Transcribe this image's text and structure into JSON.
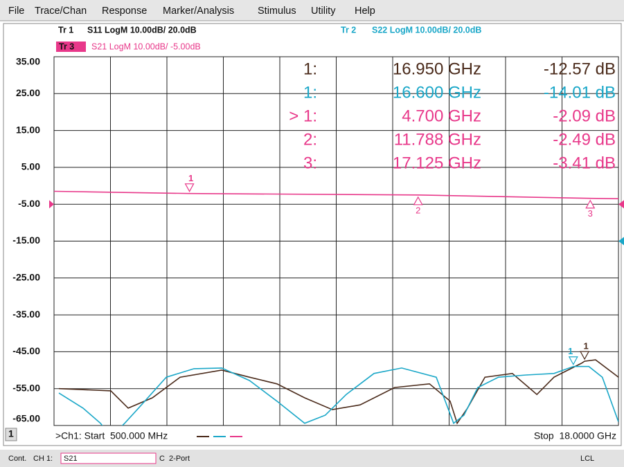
{
  "menu": [
    "File",
    "Trace/Chan",
    "Response",
    "Marker/Analysis",
    "Stimulus",
    "Utility",
    "Help"
  ],
  "traces": [
    {
      "tag": "Tr 1",
      "label": "S11 LogM 10.00dB/ 20.0dB"
    },
    {
      "tag": "Tr 2",
      "label": "S22 LogM 10.00dB/ 20.0dB"
    },
    {
      "tag": "Tr 3",
      "label": "S21 LogM 10.00dB/ -5.00dB"
    }
  ],
  "chart_data": {
    "type": "line",
    "xlim": [
      0.5,
      18
    ],
    "xticks": [
      0.5,
      2.25,
      4,
      5.75,
      7.5,
      9.25,
      11,
      12.75,
      14.5,
      16.25,
      18
    ],
    "ylim": [
      -65,
      35
    ],
    "yticks": [
      {
        "value": 35,
        "label": "35.00"
      },
      {
        "value": 25,
        "label": "25.00"
      },
      {
        "value": 15,
        "label": "15.00"
      },
      {
        "value": 5,
        "label": "5.00"
      },
      {
        "value": -5,
        "label": "-5.00"
      },
      {
        "value": -15,
        "label": "-15.00"
      },
      {
        "value": -25,
        "label": "-25.00"
      },
      {
        "value": -35,
        "label": "-35.00"
      },
      {
        "value": -45,
        "label": "-45.00"
      },
      {
        "value": -55,
        "label": "-55.00"
      },
      {
        "value": -65,
        "label": "-65.00"
      }
    ],
    "y2lim": [
      -30,
      70
    ],
    "grid": true,
    "series": [
      {
        "name": "S11",
        "color": "#4a2a1a",
        "axis": "y2",
        "ref_level": 20,
        "x": [
          0.65,
          2.26,
          2.8,
          3.55,
          4.41,
          5.7,
          6.56,
          7.41,
          8.27,
          9.13,
          9.99,
          11.06,
          12.14,
          12.78,
          13.0,
          13.32,
          13.86,
          14.71,
          15.47,
          16.0,
          16.86,
          16.95,
          17.29,
          18.0
        ],
        "values": [
          -20,
          -20.6,
          -25.3,
          -22.5,
          -16.9,
          -15,
          -16.9,
          -18.7,
          -22.5,
          -25.7,
          -24.4,
          -19.7,
          -18.7,
          -23.4,
          -29.4,
          -25.3,
          -16.9,
          -15.9,
          -21.6,
          -16.9,
          -13.1,
          -12.57,
          -12.2,
          -16.9
        ]
      },
      {
        "name": "S22",
        "color": "#1aa7c8",
        "axis": "y2",
        "ref_level": 20,
        "x": [
          0.65,
          1.4,
          1.94,
          2.26,
          2.69,
          3.12,
          3.98,
          4.84,
          5.7,
          6.56,
          7.41,
          8.27,
          8.91,
          9.56,
          10.42,
          11.28,
          12.35,
          12.89,
          13.21,
          13.64,
          14.28,
          15.14,
          16.0,
          16.6,
          16.65,
          17.08,
          17.5,
          18.0
        ],
        "values": [
          -21.2,
          -25.3,
          -29.4,
          -33,
          -29.4,
          -25.3,
          -16.9,
          -14.6,
          -14.4,
          -17.8,
          -23.4,
          -29.4,
          -27.2,
          -21.6,
          -15.9,
          -14.4,
          -16.9,
          -29.4,
          -27.2,
          -19.7,
          -16.9,
          -16.3,
          -15.9,
          -14.01,
          -14.0,
          -14.0,
          -16.9,
          -29
        ]
      },
      {
        "name": "S21",
        "color": "#e8388a",
        "axis": "y",
        "ref_level": -5,
        "x": [
          0.5,
          4.7,
          11.788,
          17.125,
          18.0
        ],
        "values": [
          -1.5,
          -2.09,
          -2.49,
          -3.41,
          -3.5
        ]
      }
    ],
    "markers": [
      {
        "id": "1",
        "label": "1:",
        "series": 0,
        "x": 16.95,
        "x_label": "16.950 GHz",
        "value": -12.57,
        "value_label": "-12.57 dB",
        "pointing": "down"
      },
      {
        "id": "1",
        "label": "1:",
        "series": 1,
        "x": 16.6,
        "x_label": "16.600 GHz",
        "value": -14.01,
        "value_label": "-14.01 dB",
        "pointing": "down"
      },
      {
        "id": "1",
        "label": "> 1:",
        "series": 2,
        "x": 4.7,
        "x_label": "4.700 GHz",
        "value": -2.09,
        "value_label": "-2.09 dB",
        "pointing": "down"
      },
      {
        "id": "2",
        "label": "2:",
        "series": 2,
        "x": 11.788,
        "x_label": "11.788 GHz",
        "value": -2.49,
        "value_label": "-2.49 dB",
        "pointing": "up"
      },
      {
        "id": "3",
        "label": "3:",
        "series": 2,
        "x": 17.125,
        "x_label": "17.125 GHz",
        "value": -3.41,
        "value_label": "-3.41 dB",
        "pointing": "up"
      }
    ]
  },
  "footer": {
    "channel": "1",
    "start": ">Ch1: Start  500.000 MHz",
    "stop": "Stop  18.0000 GHz"
  },
  "status": {
    "mode": "Cont.",
    "channel": "CH 1:",
    "param": "S21",
    "cal": "C  2-Port",
    "lcl": "LCL"
  }
}
